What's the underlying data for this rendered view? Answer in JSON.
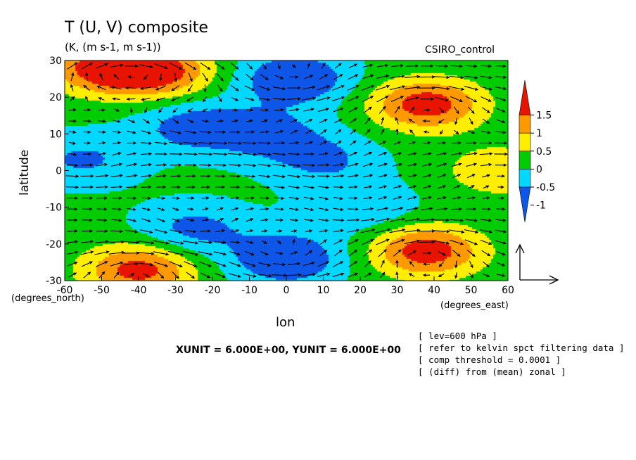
{
  "chart_data": {
    "type": "heatmap",
    "title": "T (U, V) composite",
    "subtitle": "(K, (m s-1, m s-1))",
    "run_label": "CSIRO_control",
    "xlabel": "lon",
    "ylabel": "latitude",
    "x_unit_label": "(degrees_east)",
    "y_unit_label": "(degrees_north)",
    "xlim": [
      -60,
      60
    ],
    "ylim": [
      -30,
      30
    ],
    "x_ticks": [
      -60,
      -50,
      -40,
      -30,
      -20,
      -10,
      0,
      10,
      20,
      30,
      40,
      50,
      60
    ],
    "y_ticks": [
      -30,
      -20,
      -10,
      0,
      10,
      20,
      30
    ],
    "colorbar": {
      "levels": [
        -1,
        -0.5,
        0,
        0.5,
        1,
        1.5
      ],
      "tick_labels": [
        "-1",
        "-0.5",
        "0",
        "0.5",
        "1",
        "1.5"
      ],
      "colors": [
        "#0d56e8",
        "#00d8ff",
        "#00cc00",
        "#ffee00",
        "#ff9900",
        "#e81400"
      ],
      "extend": "both"
    },
    "field_anomalies": [
      {
        "lon": -35,
        "lat": 27,
        "value": 1.6
      },
      {
        "lon": -50,
        "lat": 28,
        "value": 1.5
      },
      {
        "lon": 2,
        "lat": 25,
        "value": -1.2
      },
      {
        "lon": -25,
        "lat": 12,
        "value": -0.9
      },
      {
        "lon": -5,
        "lat": 10,
        "value": -0.8
      },
      {
        "lon": 38,
        "lat": 18,
        "value": 1.7
      },
      {
        "lon": 58,
        "lat": 0,
        "value": 0.8
      },
      {
        "lon": -55,
        "lat": 3,
        "value": -0.7
      },
      {
        "lon": 10,
        "lat": 3,
        "value": -0.7
      },
      {
        "lon": -40,
        "lat": -27,
        "value": 1.6
      },
      {
        "lon": 38,
        "lat": -22,
        "value": 1.7
      },
      {
        "lon": 0,
        "lat": -24,
        "value": -1.2
      },
      {
        "lon": -25,
        "lat": -16,
        "value": -0.8
      },
      {
        "lon": 20,
        "lat": -10,
        "value": -0.6
      }
    ],
    "vector_xunit": 6.0,
    "vector_yunit": 6.0,
    "vector_unit_text": "XUNIT = 6.000E+00, YUNIT = 6.000E+00",
    "annotations": [
      "[ lev=600 hPa ]",
      "[ refer to kelvin spct filtering data ]",
      "[ comp threshold = 0.0001 ]",
      "[ (diff) from (mean) zonal ]"
    ]
  }
}
